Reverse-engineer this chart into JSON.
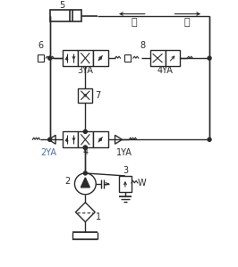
{
  "fig_width": 2.66,
  "fig_height": 2.99,
  "dpi": 100,
  "bg": "#ffffff",
  "lc": "#2a2a2a",
  "blue": "#4a6fa5",
  "tui": "退",
  "jin": "进",
  "n1": "1",
  "n2": "2",
  "n3": "3",
  "n4": "4",
  "n5": "5",
  "n6": "6",
  "n7": "7",
  "n8": "8",
  "ya1": "1YA",
  "ya2": "2YA",
  "ya3": "3YA",
  "ya4": "4YA"
}
